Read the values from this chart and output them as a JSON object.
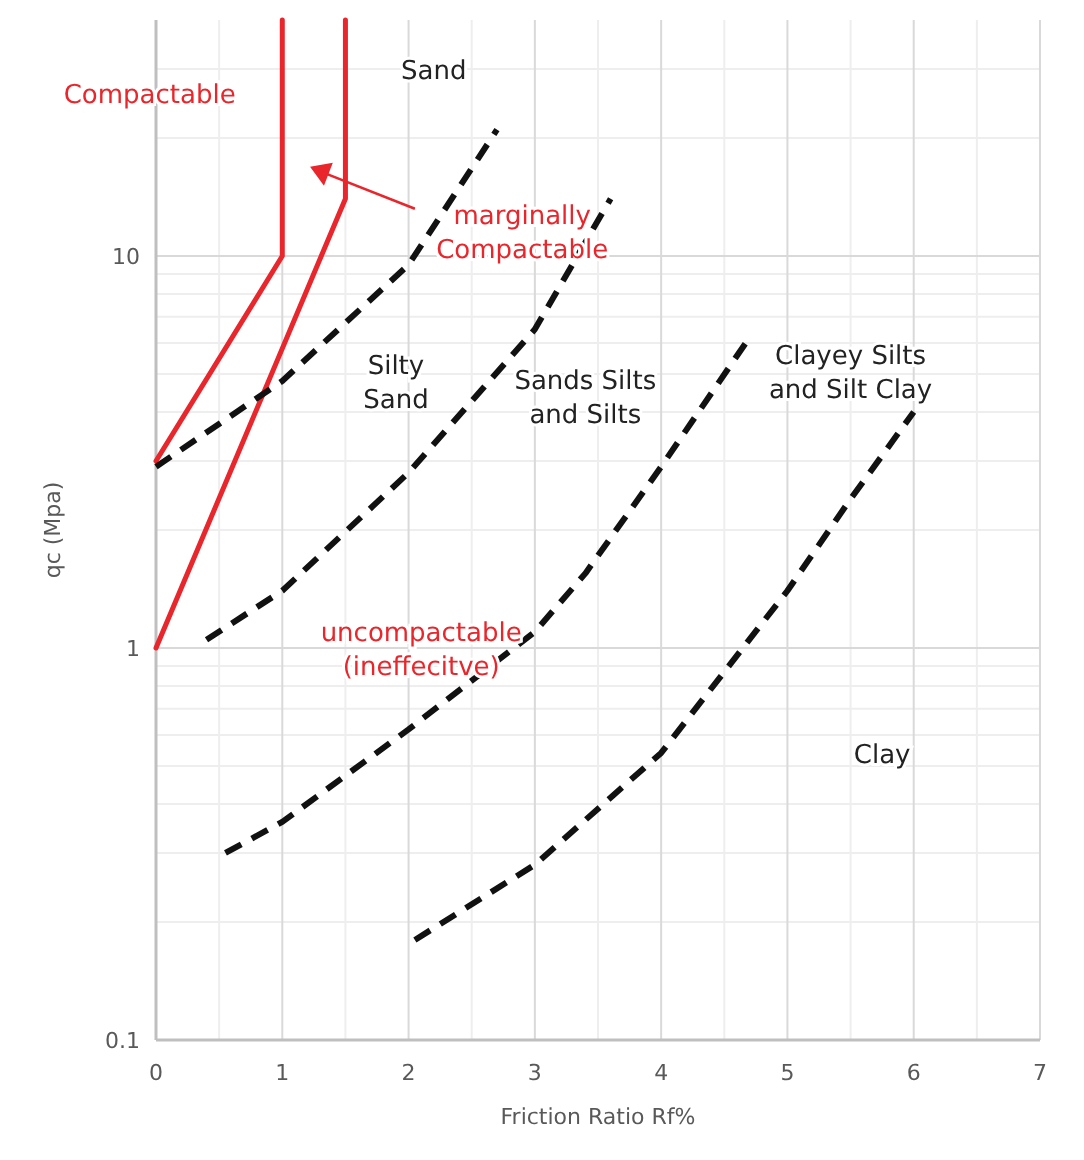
{
  "chart_data": {
    "type": "line",
    "xlabel": "Friction Ratio Rf%",
    "ylabel": "qc (Mpa)",
    "log": "y",
    "xlim": [
      0,
      7
    ],
    "xticks": [
      0,
      1,
      2,
      3,
      4,
      5,
      6,
      7
    ],
    "ylim": [
      0.1,
      40
    ],
    "yticks": [
      0.1,
      1,
      10
    ],
    "grid": true,
    "series": [
      {
        "color": "#e8262b",
        "line_style": "solid",
        "x": [
          0,
          1,
          1
        ],
        "values": [
          3,
          10,
          40
        ]
      },
      {
        "color": "#e8262b",
        "line_style": "solid",
        "x": [
          0,
          1.5,
          1.5
        ],
        "values": [
          1,
          14,
          40
        ]
      },
      {
        "color": "#111111",
        "line_style": "dashed",
        "x": [
          0,
          1,
          2,
          2.7
        ],
        "values": [
          2.9,
          4.8,
          9.5,
          21
        ]
      },
      {
        "color": "#111111",
        "line_style": "dashed",
        "x": [
          0.4,
          1,
          2,
          3,
          3.6
        ],
        "values": [
          1.05,
          1.4,
          2.8,
          6.5,
          14
        ]
      },
      {
        "color": "#111111",
        "line_style": "dashed",
        "x": [
          0.55,
          1,
          2,
          3,
          3.4,
          4,
          4.7
        ],
        "values": [
          0.3,
          0.36,
          0.62,
          1.1,
          1.55,
          2.9,
          6.2
        ]
      },
      {
        "color": "#111111",
        "line_style": "dashed",
        "x": [
          2.05,
          3,
          4,
          5,
          5.5,
          6
        ],
        "values": [
          0.18,
          0.28,
          0.54,
          1.4,
          2.4,
          4
        ]
      }
    ],
    "annotations": [
      "Compactable",
      "Sand",
      "marginally\nCompactable",
      "Silty\nSand",
      "Sands Silts\nand Silts",
      "Clayey Silts\nand Silt Clay",
      "uncompactable\n(ineffecitve)",
      "Clay"
    ]
  }
}
